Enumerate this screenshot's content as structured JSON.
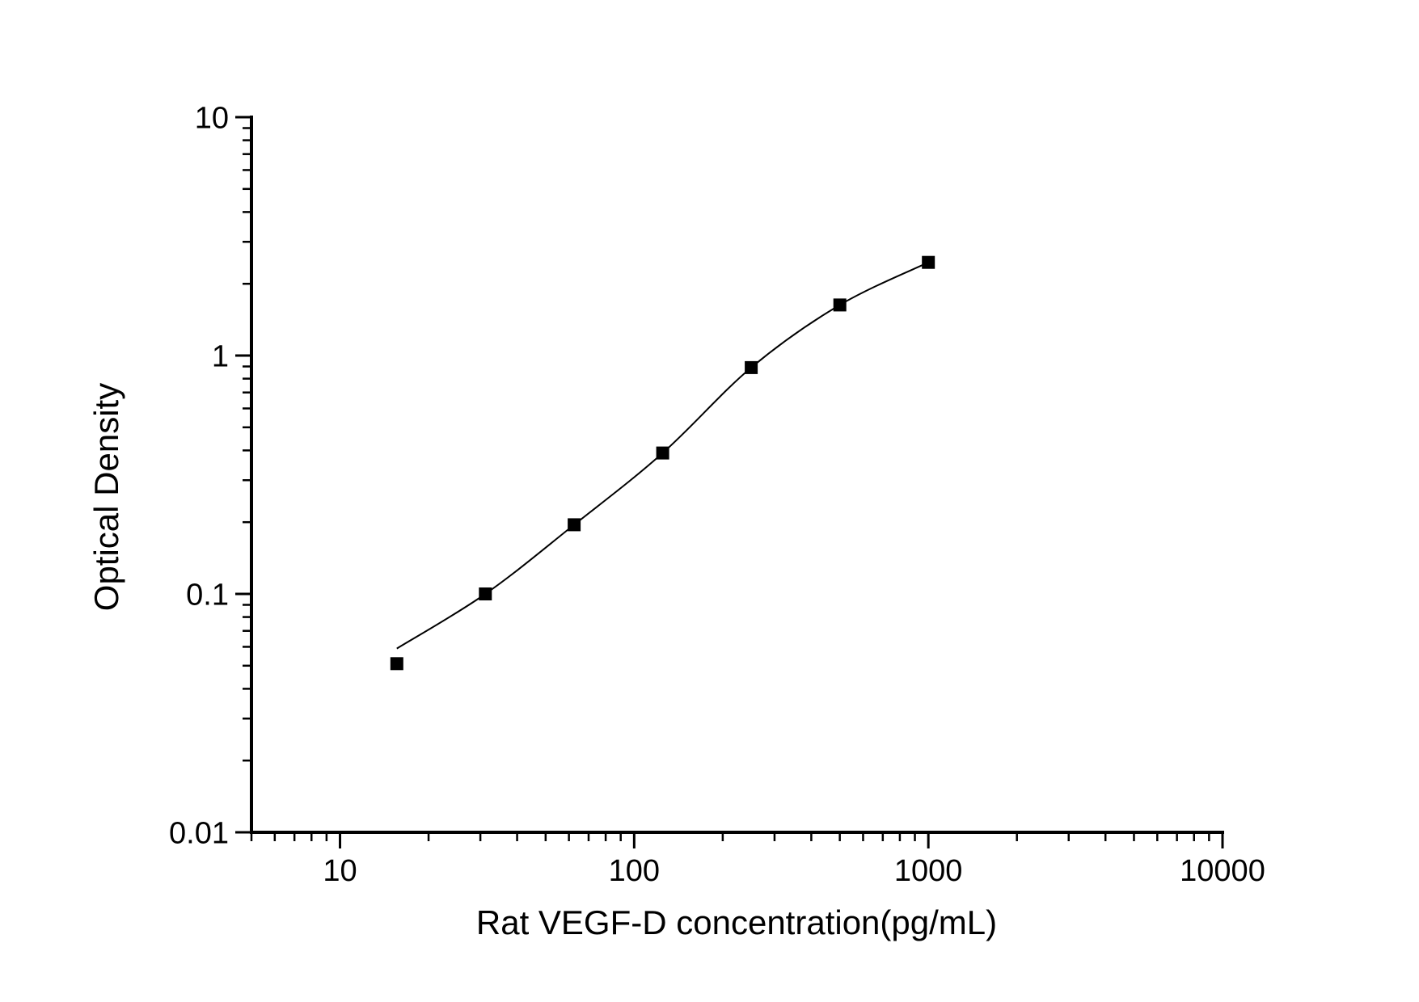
{
  "chart_data": {
    "type": "scatter",
    "title": "",
    "xlabel": "Rat VEGF-D concentration(pg/mL)",
    "ylabel": "Optical Density",
    "x_scale": "log",
    "y_scale": "log",
    "xlim": [
      5,
      10000
    ],
    "ylim": [
      0.01,
      10
    ],
    "grid": false,
    "legend": false,
    "x_major_ticks": [
      10,
      100,
      1000,
      10000
    ],
    "x_tick_labels": [
      "10",
      "100",
      "1000",
      "10000"
    ],
    "y_major_ticks": [
      10,
      1,
      0.1,
      0.01
    ],
    "y_tick_labels": [
      "10",
      "1",
      "0.1",
      "0.01"
    ],
    "minor_ticks_per_decade": [
      2,
      3,
      4,
      5,
      6,
      7,
      8,
      9
    ],
    "colors": {
      "background": "#ffffff",
      "axis": "#000000",
      "marker": "#000000",
      "line": "#000000",
      "text": "#000000"
    },
    "series": [
      {
        "name": "standard-curve",
        "marker": "square",
        "line": "smooth-fit",
        "points": [
          {
            "x": 15.6,
            "y": 0.051,
            "curve_y": 0.059
          },
          {
            "x": 31.2,
            "y": 0.1
          },
          {
            "x": 62.5,
            "y": 0.195
          },
          {
            "x": 125,
            "y": 0.39
          },
          {
            "x": 250,
            "y": 0.89
          },
          {
            "x": 500,
            "y": 1.63
          },
          {
            "x": 1000,
            "y": 2.46
          }
        ]
      }
    ]
  }
}
